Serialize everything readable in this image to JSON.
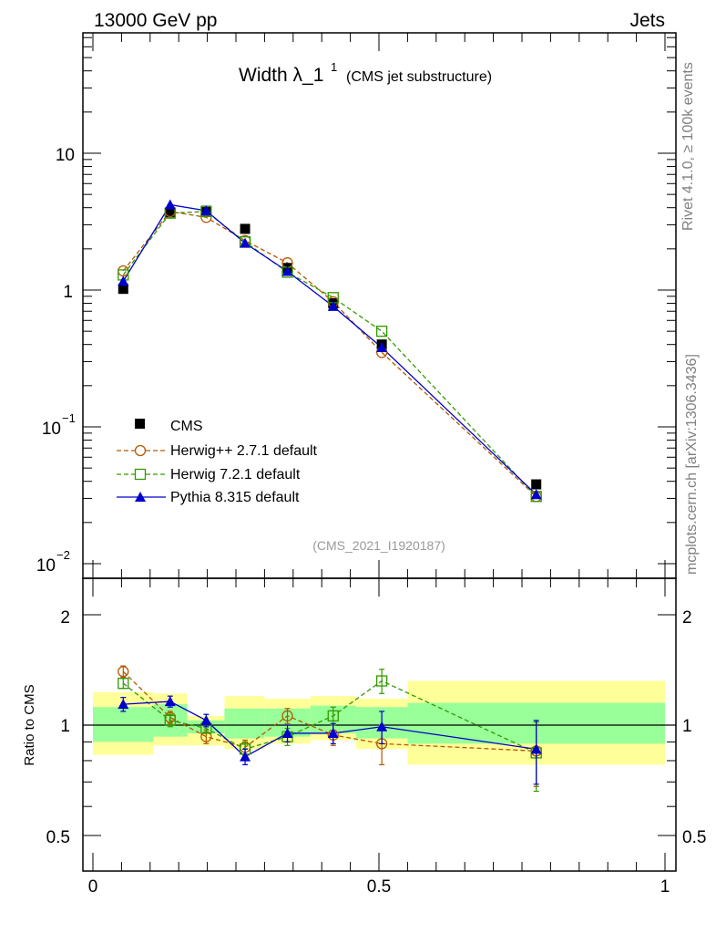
{
  "header": {
    "left": "13000 GeV pp",
    "right": "Jets"
  },
  "side": {
    "rivet": "Rivet 4.1.0, ≥ 100k events",
    "mcplots": "mcplots.cern.ch [arXiv:1306.3436]"
  },
  "chart_data": {
    "type": "line",
    "title_main": "Width λ_1",
    "title_sup": "1",
    "title_sub": "(CMS jet substructure)",
    "analysis_id": "(CMS_2021_I1920187)",
    "xlim": [
      0,
      1
    ],
    "main": {
      "yscale": "log",
      "ylim": [
        0.008,
        60
      ],
      "ytick_labels": {
        "t10": "10",
        "t1": "1",
        "tm1_base": "10",
        "tm1_exp": "−1",
        "tm2_base": "10",
        "tm2_exp": "−2"
      }
    },
    "ratio": {
      "ylabel": "Ratio to CMS",
      "ylim": [
        0.35,
        2.3
      ],
      "ytick_labels": [
        "2",
        "1",
        "0.5"
      ]
    },
    "xtick_labels": [
      "0",
      "0.5",
      "1"
    ],
    "bins": [
      {
        "lo": 0.0,
        "hi": 0.106
      },
      {
        "lo": 0.106,
        "hi": 0.165
      },
      {
        "lo": 0.165,
        "hi": 0.23
      },
      {
        "lo": 0.23,
        "hi": 0.3
      },
      {
        "lo": 0.3,
        "hi": 0.38
      },
      {
        "lo": 0.38,
        "hi": 0.46
      },
      {
        "lo": 0.46,
        "hi": 0.55
      },
      {
        "lo": 0.55,
        "hi": 1.0
      }
    ],
    "band_yellow": [
      [
        0.83,
        1.23
      ],
      [
        0.88,
        1.22
      ],
      [
        0.88,
        1.06
      ],
      [
        0.86,
        1.2
      ],
      [
        0.89,
        1.18
      ],
      [
        0.91,
        1.2
      ],
      [
        0.86,
        1.18
      ],
      [
        0.78,
        1.32
      ]
    ],
    "band_green": [
      [
        0.9,
        1.12
      ],
      [
        0.93,
        1.14
      ],
      [
        0.95,
        1.03
      ],
      [
        0.92,
        1.11
      ],
      [
        0.93,
        1.11
      ],
      [
        0.95,
        1.13
      ],
      [
        0.92,
        1.12
      ],
      [
        0.89,
        1.15
      ]
    ],
    "x_points": [
      0.053,
      0.135,
      0.198,
      0.266,
      0.34,
      0.42,
      0.505,
      0.775
    ],
    "series": [
      {
        "name": "CMS",
        "color": "#000000",
        "marker": "filled-square",
        "values": [
          1.02,
          3.7,
          3.8,
          2.8,
          1.45,
          0.8,
          0.4,
          0.038
        ],
        "ratio": [
          1,
          1,
          1,
          1,
          1,
          1,
          1,
          1
        ]
      },
      {
        "name": "Herwig++ 2.7.1 default",
        "color": "#b35900",
        "marker": "open-circle",
        "dash": "5,3",
        "values": [
          1.38,
          3.75,
          3.4,
          2.3,
          1.58,
          0.82,
          0.35,
          0.031
        ],
        "ratio": [
          1.4,
          1.05,
          0.93,
          0.87,
          1.06,
          0.94,
          0.89,
          0.85
        ],
        "ratio_err": [
          0.05,
          0.04,
          0.04,
          0.04,
          0.05,
          0.06,
          0.11,
          0.17
        ]
      },
      {
        "name": "Herwig 7.2.1 default",
        "color": "#339900",
        "marker": "open-square",
        "dash": "5,3",
        "values": [
          1.29,
          3.65,
          3.75,
          2.25,
          1.35,
          0.88,
          0.5,
          0.031
        ],
        "ratio": [
          1.3,
          1.03,
          0.98,
          0.86,
          0.93,
          1.06,
          1.32,
          0.84
        ],
        "ratio_err": [
          0.04,
          0.04,
          0.03,
          0.04,
          0.05,
          0.06,
          0.1,
          0.18
        ]
      },
      {
        "name": "Pythia 8.315 default",
        "color": "#0000cc",
        "marker": "filled-triangle",
        "values": [
          1.16,
          4.2,
          3.8,
          2.2,
          1.37,
          0.76,
          0.38,
          0.032
        ],
        "ratio": [
          1.14,
          1.16,
          1.03,
          0.82,
          0.95,
          0.95,
          0.99,
          0.86
        ],
        "ratio_err": [
          0.05,
          0.04,
          0.04,
          0.04,
          0.05,
          0.06,
          0.1,
          0.17
        ]
      }
    ]
  }
}
